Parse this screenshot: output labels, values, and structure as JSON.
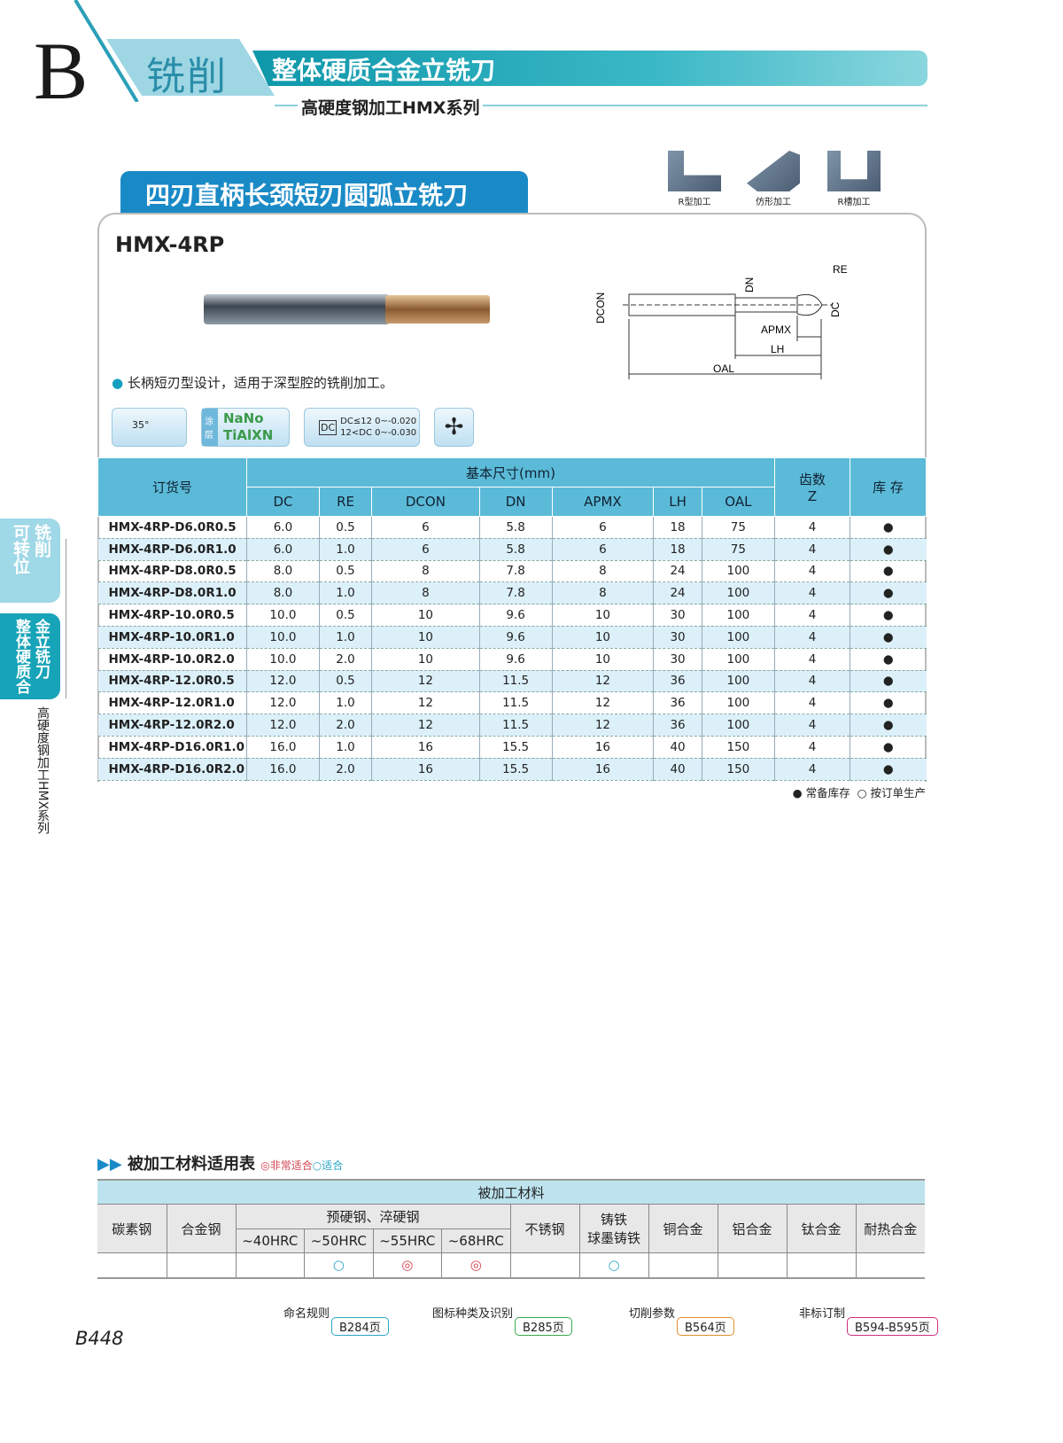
{
  "header": {
    "letter": "B",
    "section": "铣削",
    "category": "整体硬质合金立铣刀",
    "series": "高硬度钢加工HMX系列"
  },
  "product": {
    "title": "四刃直柄长颈短刃圆弧立铣刀",
    "model": "HMX-4RP",
    "feature": "长柄短刃型设计，适用于深型腔的铣削加工。"
  },
  "machining_icons": [
    {
      "label": "R型加工"
    },
    {
      "label": "仿形加工"
    },
    {
      "label": "R槽加工"
    }
  ],
  "feature_icons": {
    "helix": "35°",
    "coating_label": "涂层",
    "coating_1": "NaNo",
    "coating_2": "TiAlXN",
    "tol_symbol": "DC",
    "tol_1": "DC≤12  0~-0.020",
    "tol_2": "12<DC  0~-0.030",
    "flute": "4-flute-end-icon"
  },
  "diagram": {
    "labels": [
      "RE",
      "DN",
      "DCON",
      "DC",
      "APMX",
      "LH",
      "OAL"
    ]
  },
  "table": {
    "h_order": "订货号",
    "h_basic": "基本尺寸(mm)",
    "h_teeth": "齿数\nZ",
    "h_stock": "库 存",
    "columns": [
      "DC",
      "RE",
      "DCON",
      "DN",
      "APMX",
      "LH",
      "OAL"
    ],
    "rows": [
      [
        "HMX-4RP-D6.0R0.5",
        "6.0",
        "0.5",
        "6",
        "5.8",
        "6",
        "18",
        "75",
        "4",
        "●"
      ],
      [
        "HMX-4RP-D6.0R1.0",
        "6.0",
        "1.0",
        "6",
        "5.8",
        "6",
        "18",
        "75",
        "4",
        "●"
      ],
      [
        "HMX-4RP-D8.0R0.5",
        "8.0",
        "0.5",
        "8",
        "7.8",
        "8",
        "24",
        "100",
        "4",
        "●"
      ],
      [
        "HMX-4RP-D8.0R1.0",
        "8.0",
        "1.0",
        "8",
        "7.8",
        "8",
        "24",
        "100",
        "4",
        "●"
      ],
      [
        "HMX-4RP-10.0R0.5",
        "10.0",
        "0.5",
        "10",
        "9.6",
        "10",
        "30",
        "100",
        "4",
        "●"
      ],
      [
        "HMX-4RP-10.0R1.0",
        "10.0",
        "1.0",
        "10",
        "9.6",
        "10",
        "30",
        "100",
        "4",
        "●"
      ],
      [
        "HMX-4RP-10.0R2.0",
        "10.0",
        "2.0",
        "10",
        "9.6",
        "10",
        "30",
        "100",
        "4",
        "●"
      ],
      [
        "HMX-4RP-12.0R0.5",
        "12.0",
        "0.5",
        "12",
        "11.5",
        "12",
        "36",
        "100",
        "4",
        "●"
      ],
      [
        "HMX-4RP-12.0R1.0",
        "12.0",
        "1.0",
        "12",
        "11.5",
        "12",
        "36",
        "100",
        "4",
        "●"
      ],
      [
        "HMX-4RP-12.0R2.0",
        "12.0",
        "2.0",
        "12",
        "11.5",
        "12",
        "36",
        "100",
        "4",
        "●"
      ],
      [
        "HMX-4RP-D16.0R1.0",
        "16.0",
        "1.0",
        "16",
        "15.5",
        "16",
        "40",
        "150",
        "4",
        "●"
      ],
      [
        "HMX-4RP-D16.0R2.0",
        "16.0",
        "2.0",
        "16",
        "15.5",
        "16",
        "40",
        "150",
        "4",
        "●"
      ]
    ],
    "legend": "● 常备库存  ○ 按订单生产"
  },
  "side_tabs": {
    "tab1_a": "可转位",
    "tab1_b": "铣削",
    "tab2_a": "整体硬质合",
    "tab2_b": "金立铣刀",
    "side_text": "高硬度钢加工HMX系列"
  },
  "materials": {
    "title": "被加工材料适用表",
    "legend_vgood": "◎非常适合",
    "legend_good": "○适合",
    "caption": "被加工材料",
    "hardened_group": "预硬钢、淬硬钢",
    "headers": [
      "碳素钢",
      "合金钢",
      "~40HRC",
      "~50HRC",
      "~55HRC",
      "~68HRC",
      "不锈钢",
      "铸铁\n球墨铸铁",
      "铜合金",
      "铝合金",
      "钛合金",
      "耐热合金"
    ],
    "ratings": [
      "",
      "",
      "",
      "○",
      "◎",
      "◎",
      "",
      "○",
      "",
      "",
      "",
      ""
    ]
  },
  "references": [
    {
      "label": "命名规则",
      "page": "B284页"
    },
    {
      "label": "图标种类及识别",
      "page": "B285页"
    },
    {
      "label": "切削参数",
      "page": "B564页"
    },
    {
      "label": "非标订制",
      "page": "B594-B595页"
    }
  ],
  "page_number": "B448",
  "colors": {
    "teal": "#1aa3b5",
    "blue": "#1a8ac6",
    "table_header": "#5bbad8",
    "very_suitable": "#d4414e",
    "suitable": "#2aa6c6"
  }
}
